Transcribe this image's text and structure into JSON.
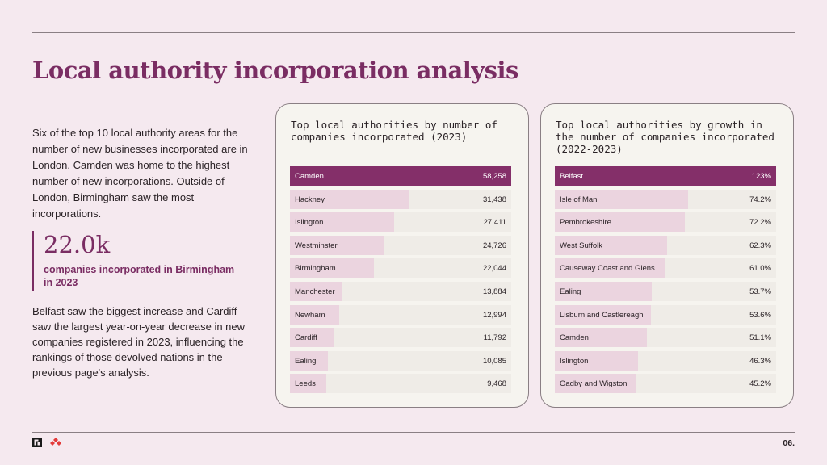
{
  "title": "Local authority incorporation analysis",
  "intro_text": "Six of the top 10 local authority areas for the number of new businesses incorporated are in London. Camden was home to the highest number of new incorporations. Outside of London, Birmingham saw the most incorporations.",
  "stat": {
    "value": "22.0k",
    "label": "companies incorporated in Birmingham in 2023"
  },
  "outro_text": "Belfast saw the biggest increase and Cardiff saw the largest year-on-year decrease in new companies registered in 2023, influencing the rankings of those devolved nations in the previous page's analysis.",
  "page_number": "06.",
  "colors": {
    "accent": "#7a2d63",
    "bar_top": "#842f69",
    "bar": "#ebd4df",
    "background": "#f5e9ef"
  },
  "chart_data": [
    {
      "type": "bar",
      "orientation": "horizontal",
      "title": "Top local authorities by number of companies incorporated (2023)",
      "categories": [
        "Camden",
        "Hackney",
        "Islington",
        "Westminster",
        "Birmingham",
        "Manchester",
        "Newham",
        "Cardiff",
        "Ealing",
        "Leeds"
      ],
      "values": [
        58258,
        31438,
        27411,
        24726,
        22044,
        13884,
        12994,
        11792,
        10085,
        9468
      ],
      "value_labels": [
        "58,258",
        "31,438",
        "27,411",
        "24,726",
        "22,044",
        "13,884",
        "12,994",
        "11,792",
        "10,085",
        "9,468"
      ],
      "xlim": [
        0,
        58258
      ]
    },
    {
      "type": "bar",
      "orientation": "horizontal",
      "title": "Top local authorities by growth in the number of companies incorporated (2022-2023)",
      "categories": [
        "Belfast",
        "Isle of Man",
        "Pembrokeshire",
        "West Suffolk",
        "Causeway Coast and Glens",
        "Ealing",
        "Lisburn and Castlereagh",
        "Camden",
        "Islington",
        "Oadby and Wigston"
      ],
      "values": [
        123,
        74.2,
        72.2,
        62.3,
        61.0,
        53.7,
        53.6,
        51.1,
        46.3,
        45.2
      ],
      "value_labels": [
        "123%",
        "74.2%",
        "72.2%",
        "62.3%",
        "61.0%",
        "53.7%",
        "53.6%",
        "51.1%",
        "46.3%",
        "45.2%"
      ],
      "xlim": [
        0,
        123
      ]
    }
  ]
}
